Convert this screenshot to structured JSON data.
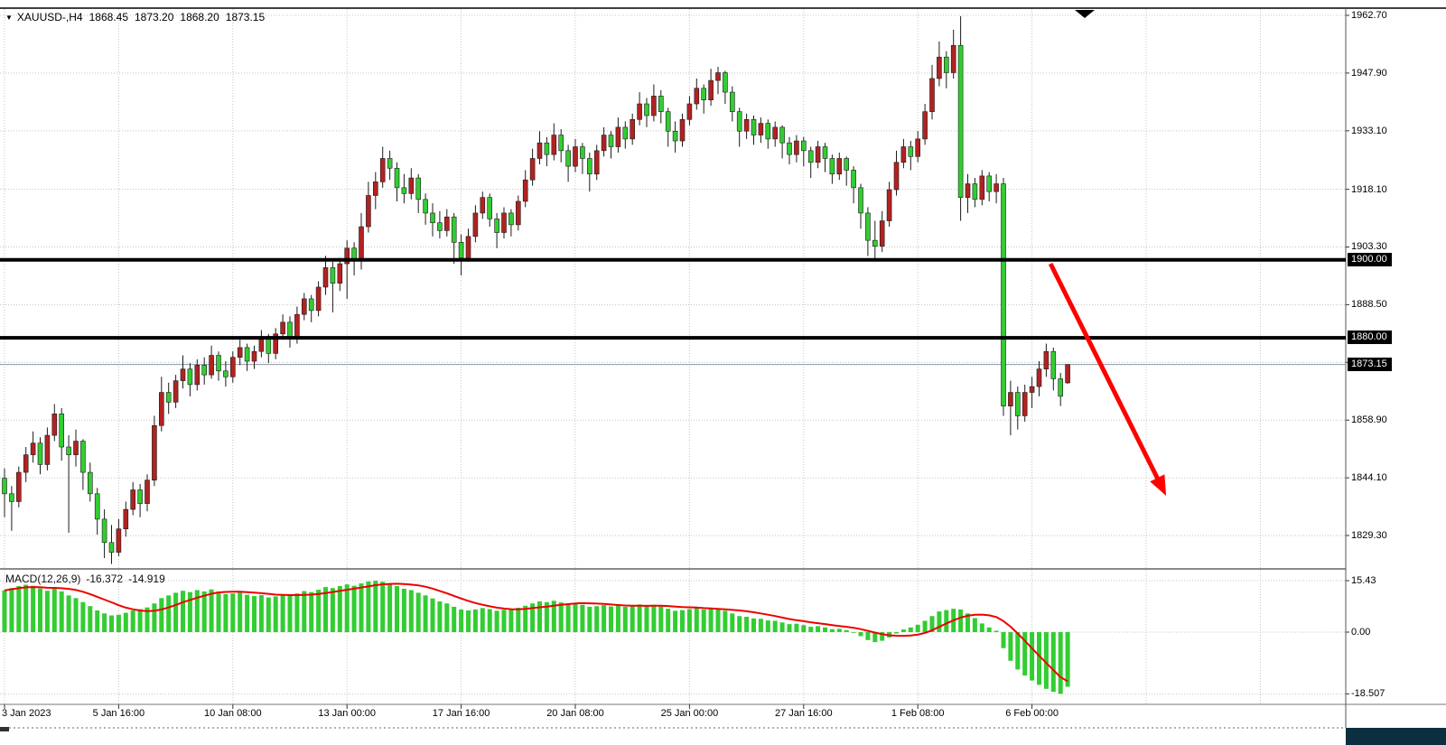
{
  "header": {
    "dropdown_icon": "▼",
    "symbol_period": "XAUUSD-,H4",
    "open": "1868.45",
    "high": "1873.20",
    "low": "1868.20",
    "close": "1873.15"
  },
  "macd_panel": {
    "label": "MACD(12,26,9)",
    "macd_value": "-16.372",
    "signal_value": "-14.919"
  },
  "chart_data": [
    {
      "type": "candlestick",
      "symbol": "XAUUSD-",
      "timeframe": "H4",
      "title": "XAUUSD-,H4",
      "y_tick_labels": [
        "1962.70",
        "1947.90",
        "1933.10",
        "1918.10",
        "1903.30",
        "1888.50",
        "1858.90",
        "1844.10",
        "1829.30"
      ],
      "grid_prices": [
        1962.7,
        1947.9,
        1933.1,
        1918.1,
        1903.3,
        1888.5,
        1873.7,
        1858.9,
        1844.1,
        1829.3
      ],
      "x_tick_labels": [
        "3 Jan 2023",
        "5 Jan 16:00",
        "10 Jan 08:00",
        "13 Jan 00:00",
        "17 Jan 16:00",
        "20 Jan 08:00",
        "25 Jan 00:00",
        "27 Jan 16:00",
        "1 Feb 08:00",
        "6 Feb 00:00"
      ],
      "x_tick_bar_indices": [
        0,
        16,
        32,
        48,
        64,
        80,
        96,
        112,
        128,
        144
      ],
      "ylim": [
        1822.0,
        1966.5
      ],
      "up_color": "#B22222",
      "down_color": "#32CD32",
      "grid_color": "#C4C4C4",
      "current_price": 1873.15,
      "current_price_label": "1873.15",
      "hlines": [
        {
          "price": 1900.0,
          "label": "1900.00",
          "color": "#000000",
          "width": 4
        },
        {
          "price": 1880.0,
          "label": "1880.00",
          "color": "#000000",
          "width": 4
        }
      ],
      "annotations": [
        {
          "type": "arrow",
          "from_bar": 146.6,
          "from_price": 1899.0,
          "to_bar": 162.8,
          "to_price": 1839.5,
          "color": "#FF0000",
          "stroke_width": 5
        }
      ],
      "candles_ohlc": [
        [
          1844.0,
          1846.5,
          1834.0,
          1840.0
        ],
        [
          1840.0,
          1842.0,
          1830.5,
          1838.0
        ],
        [
          1838.0,
          1847.0,
          1836.5,
          1845.5
        ],
        [
          1845.5,
          1852.0,
          1843.0,
          1850.0
        ],
        [
          1850.0,
          1856.0,
          1848.0,
          1853.0
        ],
        [
          1853.0,
          1854.5,
          1845.0,
          1847.5
        ],
        [
          1847.5,
          1857.0,
          1846.0,
          1855.0
        ],
        [
          1855.0,
          1863.0,
          1853.5,
          1860.5
        ],
        [
          1860.5,
          1862.0,
          1848.5,
          1852.0
        ],
        [
          1852.0,
          1855.0,
          1830.0,
          1850.0
        ],
        [
          1850.0,
          1856.5,
          1847.0,
          1853.5
        ],
        [
          1853.5,
          1854.0,
          1841.0,
          1845.5
        ],
        [
          1845.5,
          1848.0,
          1838.0,
          1840.0
        ],
        [
          1840.0,
          1841.5,
          1829.5,
          1833.5
        ],
        [
          1833.5,
          1836.0,
          1823.5,
          1827.5
        ],
        [
          1827.5,
          1832.0,
          1822.0,
          1825.0
        ],
        [
          1825.0,
          1833.5,
          1824.0,
          1831.0
        ],
        [
          1831.0,
          1838.0,
          1829.0,
          1836.0
        ],
        [
          1836.0,
          1843.0,
          1834.5,
          1841.0
        ],
        [
          1841.0,
          1842.5,
          1834.0,
          1837.5
        ],
        [
          1837.5,
          1845.0,
          1835.5,
          1843.5
        ],
        [
          1843.5,
          1860.0,
          1842.0,
          1857.5
        ],
        [
          1857.5,
          1870.0,
          1856.0,
          1866.0
        ],
        [
          1866.0,
          1868.5,
          1860.5,
          1863.5
        ],
        [
          1863.5,
          1870.5,
          1862.0,
          1869.0
        ],
        [
          1869.0,
          1875.5,
          1867.0,
          1872.0
        ],
        [
          1872.0,
          1873.5,
          1865.0,
          1868.0
        ],
        [
          1868.0,
          1874.5,
          1866.5,
          1873.0
        ],
        [
          1873.0,
          1875.0,
          1868.0,
          1870.5
        ],
        [
          1870.5,
          1878.0,
          1869.5,
          1875.5
        ],
        [
          1875.5,
          1876.5,
          1869.0,
          1871.5
        ],
        [
          1871.5,
          1874.0,
          1867.5,
          1870.0
        ],
        [
          1870.0,
          1876.5,
          1868.5,
          1875.0
        ],
        [
          1875.0,
          1879.5,
          1873.0,
          1877.5
        ],
        [
          1877.5,
          1878.5,
          1871.5,
          1874.0
        ],
        [
          1874.0,
          1878.0,
          1872.0,
          1876.5
        ],
        [
          1876.5,
          1882.0,
          1875.0,
          1880.0
        ],
        [
          1880.0,
          1881.0,
          1873.5,
          1876.0
        ],
        [
          1876.0,
          1882.5,
          1874.5,
          1881.0
        ],
        [
          1881.0,
          1886.0,
          1879.5,
          1884.0
        ],
        [
          1884.0,
          1885.5,
          1877.5,
          1880.0
        ],
        [
          1880.0,
          1888.0,
          1878.5,
          1886.0
        ],
        [
          1886.0,
          1891.5,
          1884.5,
          1890.0
        ],
        [
          1890.0,
          1891.0,
          1884.0,
          1887.0
        ],
        [
          1887.0,
          1894.5,
          1885.5,
          1893.0
        ],
        [
          1893.0,
          1901.0,
          1891.0,
          1898.0
        ],
        [
          1898.0,
          1899.5,
          1886.5,
          1894.0
        ],
        [
          1894.0,
          1900.5,
          1892.0,
          1899.0
        ],
        [
          1899.0,
          1905.0,
          1890.0,
          1903.0
        ],
        [
          1903.0,
          1904.5,
          1896.0,
          1900.0
        ],
        [
          1900.0,
          1912.0,
          1897.5,
          1908.5
        ],
        [
          1908.5,
          1920.0,
          1907.0,
          1916.5
        ],
        [
          1916.5,
          1922.5,
          1913.0,
          1920.0
        ],
        [
          1920.0,
          1929.0,
          1918.5,
          1926.0
        ],
        [
          1926.0,
          1928.0,
          1920.5,
          1923.5
        ],
        [
          1923.5,
          1925.0,
          1915.0,
          1918.5
        ],
        [
          1918.5,
          1922.0,
          1914.5,
          1917.0
        ],
        [
          1917.0,
          1923.5,
          1915.5,
          1921.0
        ],
        [
          1921.0,
          1922.0,
          1912.0,
          1915.5
        ],
        [
          1915.5,
          1917.0,
          1909.0,
          1912.0
        ],
        [
          1912.0,
          1914.5,
          1906.0,
          1909.5
        ],
        [
          1909.5,
          1912.5,
          1905.5,
          1907.5
        ],
        [
          1907.5,
          1913.0,
          1906.0,
          1911.0
        ],
        [
          1911.0,
          1912.0,
          1899.0,
          1904.5
        ],
        [
          1904.5,
          1906.5,
          1896.0,
          1900.5
        ],
        [
          1900.5,
          1908.0,
          1899.5,
          1906.0
        ],
        [
          1906.0,
          1914.0,
          1904.5,
          1912.0
        ],
        [
          1912.0,
          1917.5,
          1910.5,
          1916.0
        ],
        [
          1916.0,
          1917.0,
          1908.5,
          1910.5
        ],
        [
          1910.5,
          1912.0,
          1903.0,
          1907.0
        ],
        [
          1907.0,
          1913.5,
          1905.5,
          1912.0
        ],
        [
          1912.0,
          1913.0,
          1906.0,
          1909.0
        ],
        [
          1909.0,
          1916.5,
          1907.5,
          1915.0
        ],
        [
          1915.0,
          1923.0,
          1913.5,
          1920.5
        ],
        [
          1920.5,
          1928.5,
          1919.0,
          1926.0
        ],
        [
          1926.0,
          1933.0,
          1924.5,
          1930.0
        ],
        [
          1930.0,
          1931.5,
          1924.0,
          1927.0
        ],
        [
          1927.0,
          1935.0,
          1925.5,
          1932.0
        ],
        [
          1932.0,
          1933.5,
          1925.0,
          1928.0
        ],
        [
          1928.0,
          1929.5,
          1920.0,
          1924.0
        ],
        [
          1924.0,
          1931.0,
          1922.5,
          1929.0
        ],
        [
          1929.0,
          1930.0,
          1922.0,
          1926.0
        ],
        [
          1926.0,
          1927.5,
          1917.5,
          1922.0
        ],
        [
          1922.0,
          1929.5,
          1920.5,
          1928.0
        ],
        [
          1928.0,
          1934.0,
          1926.5,
          1932.0
        ],
        [
          1932.0,
          1933.0,
          1926.0,
          1929.0
        ],
        [
          1929.0,
          1936.5,
          1927.5,
          1934.0
        ],
        [
          1934.0,
          1935.5,
          1928.5,
          1931.0
        ],
        [
          1931.0,
          1937.5,
          1929.5,
          1936.0
        ],
        [
          1936.0,
          1943.0,
          1934.5,
          1940.0
        ],
        [
          1940.0,
          1941.5,
          1934.0,
          1937.0
        ],
        [
          1937.0,
          1945.0,
          1935.5,
          1942.0
        ],
        [
          1942.0,
          1943.5,
          1935.0,
          1938.0
        ],
        [
          1938.0,
          1939.0,
          1929.0,
          1933.0
        ],
        [
          1933.0,
          1935.5,
          1927.5,
          1930.5
        ],
        [
          1930.5,
          1937.5,
          1929.0,
          1936.0
        ],
        [
          1936.0,
          1942.0,
          1934.5,
          1940.0
        ],
        [
          1940.0,
          1946.5,
          1938.5,
          1944.0
        ],
        [
          1944.0,
          1945.0,
          1937.5,
          1941.0
        ],
        [
          1941.0,
          1949.0,
          1939.5,
          1946.0
        ],
        [
          1946.0,
          1949.5,
          1942.5,
          1948.0
        ],
        [
          1948.0,
          1948.5,
          1940.0,
          1943.0
        ],
        [
          1943.0,
          1944.5,
          1935.5,
          1938.0
        ],
        [
          1938.0,
          1939.0,
          1929.0,
          1933.0
        ],
        [
          1933.0,
          1937.5,
          1931.0,
          1936.0
        ],
        [
          1936.0,
          1937.0,
          1929.5,
          1932.0
        ],
        [
          1932.0,
          1936.5,
          1930.0,
          1935.0
        ],
        [
          1935.0,
          1936.0,
          1928.5,
          1931.0
        ],
        [
          1931.0,
          1935.5,
          1929.0,
          1934.0
        ],
        [
          1934.0,
          1934.5,
          1926.0,
          1930.0
        ],
        [
          1930.0,
          1931.5,
          1924.5,
          1927.0
        ],
        [
          1927.0,
          1932.0,
          1925.0,
          1930.5
        ],
        [
          1930.5,
          1931.5,
          1924.0,
          1928.0
        ],
        [
          1928.0,
          1929.0,
          1921.0,
          1925.0
        ],
        [
          1925.0,
          1930.5,
          1923.5,
          1929.0
        ],
        [
          1929.0,
          1930.0,
          1922.5,
          1926.0
        ],
        [
          1926.0,
          1927.0,
          1919.5,
          1922.0
        ],
        [
          1922.0,
          1927.5,
          1920.5,
          1926.0
        ],
        [
          1926.0,
          1926.5,
          1919.0,
          1923.0
        ],
        [
          1923.0,
          1924.0,
          1914.5,
          1918.5
        ],
        [
          1918.5,
          1919.5,
          1908.0,
          1912.0
        ],
        [
          1912.0,
          1913.5,
          1901.0,
          1905.0
        ],
        [
          1905.0,
          1910.0,
          1900.0,
          1903.5
        ],
        [
          1903.5,
          1912.5,
          1902.0,
          1910.0
        ],
        [
          1910.0,
          1920.0,
          1908.5,
          1918.0
        ],
        [
          1918.0,
          1928.0,
          1916.5,
          1925.0
        ],
        [
          1925.0,
          1931.0,
          1923.5,
          1929.0
        ],
        [
          1929.0,
          1930.5,
          1923.0,
          1926.5
        ],
        [
          1926.5,
          1933.0,
          1925.0,
          1931.0
        ],
        [
          1931.0,
          1940.0,
          1929.5,
          1938.0
        ],
        [
          1938.0,
          1950.0,
          1936.0,
          1946.5
        ],
        [
          1946.5,
          1956.0,
          1944.5,
          1952.0
        ],
        [
          1952.0,
          1953.5,
          1944.0,
          1948.0
        ],
        [
          1948.0,
          1959.0,
          1946.5,
          1955.0
        ],
        [
          1955.0,
          1962.5,
          1910.0,
          1916.0
        ],
        [
          1916.0,
          1922.0,
          1912.0,
          1919.5
        ],
        [
          1919.5,
          1921.0,
          1913.5,
          1915.5
        ],
        [
          1915.5,
          1923.0,
          1914.0,
          1921.5
        ],
        [
          1921.5,
          1922.5,
          1915.0,
          1917.5
        ],
        [
          1917.5,
          1922.0,
          1914.5,
          1919.5
        ],
        [
          1919.5,
          1921.0,
          1860.0,
          1862.5
        ],
        [
          1862.5,
          1869.0,
          1855.0,
          1866.0
        ],
        [
          1866.0,
          1867.5,
          1856.5,
          1860.0
        ],
        [
          1860.0,
          1868.0,
          1858.5,
          1866.0
        ],
        [
          1866.0,
          1870.0,
          1862.0,
          1867.5
        ],
        [
          1867.5,
          1874.0,
          1865.0,
          1872.0
        ],
        [
          1872.0,
          1878.5,
          1870.0,
          1876.5
        ],
        [
          1876.5,
          1877.5,
          1866.5,
          1869.5
        ],
        [
          1869.5,
          1871.0,
          1862.5,
          1865.0
        ],
        [
          1868.45,
          1873.2,
          1868.2,
          1873.15
        ]
      ]
    },
    {
      "type": "macd",
      "params": "12,26,9",
      "current_macd": -16.372,
      "current_signal": -14.919,
      "signal_period": 9,
      "y_tick_labels": [
        "15.43",
        "0.00",
        "-18.507"
      ],
      "grid_values": [
        15.43,
        0,
        -18.507
      ],
      "histogram_color": "#32CD32",
      "signal_color": "#EE0000",
      "values": [
        12.5,
        13.2,
        13.8,
        14.2,
        13.9,
        13.1,
        12.4,
        13.0,
        12.2,
        11.0,
        10.2,
        9.0,
        7.8,
        6.5,
        5.6,
        5.0,
        5.2,
        5.8,
        6.5,
        6.9,
        7.4,
        8.6,
        10.2,
        11.0,
        11.8,
        12.4,
        12.0,
        12.6,
        12.2,
        12.8,
        12.1,
        11.4,
        11.6,
        11.9,
        11.2,
        10.8,
        11.1,
        10.4,
        10.7,
        11.3,
        10.9,
        11.6,
        12.3,
        12.0,
        12.7,
        13.5,
        13.2,
        13.8,
        14.3,
        13.9,
        14.6,
        15.2,
        15.4,
        15.1,
        14.6,
        13.8,
        13.0,
        12.6,
        11.8,
        11.0,
        10.1,
        9.2,
        8.6,
        7.6,
        6.8,
        6.5,
        6.8,
        7.2,
        6.9,
        6.4,
        6.7,
        6.9,
        7.3,
        7.9,
        8.6,
        9.2,
        9.0,
        9.4,
        8.9,
        8.3,
        8.6,
        8.2,
        7.6,
        7.8,
        8.1,
        7.7,
        8.0,
        7.6,
        7.9,
        8.3,
        7.9,
        8.2,
        7.7,
        7.0,
        6.4,
        6.6,
        6.9,
        7.2,
        6.8,
        7.1,
        7.0,
        6.4,
        5.6,
        4.8,
        4.6,
        4.1,
        4.0,
        3.5,
        3.4,
        2.9,
        2.4,
        2.5,
        2.1,
        1.6,
        1.8,
        1.4,
        0.9,
        1.0,
        0.6,
        -0.2,
        -1.2,
        -2.4,
        -3.0,
        -2.6,
        -1.6,
        -0.4,
        0.8,
        1.4,
        2.2,
        3.4,
        4.8,
        6.2,
        6.6,
        7.0,
        6.8,
        5.6,
        4.2,
        2.6,
        1.4,
        0.4,
        -4.8,
        -8.6,
        -11.2,
        -13.0,
        -14.5,
        -15.8,
        -17.0,
        -17.9,
        -18.5,
        -16.372
      ]
    }
  ]
}
